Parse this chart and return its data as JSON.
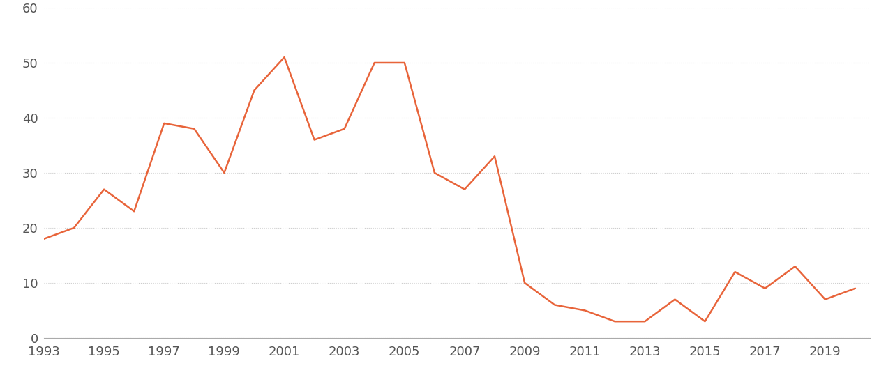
{
  "years": [
    1993,
    1994,
    1995,
    1996,
    1997,
    1998,
    1999,
    2000,
    2001,
    2002,
    2003,
    2004,
    2005,
    2006,
    2007,
    2008,
    2009,
    2010,
    2011,
    2012,
    2013,
    2014,
    2015,
    2016,
    2017,
    2018,
    2019,
    2020
  ],
  "values": [
    18,
    20,
    27,
    23,
    39,
    38,
    30,
    45,
    51,
    36,
    38,
    50,
    50,
    30,
    27,
    33,
    10,
    6,
    5,
    3,
    3,
    7,
    3,
    12,
    9,
    13,
    7,
    9
  ],
  "line_color": "#E8643A",
  "line_width": 1.8,
  "background_color": "#ffffff",
  "grid_color": "#cccccc",
  "yticks": [
    0,
    10,
    20,
    30,
    40,
    50,
    60
  ],
  "xtick_labels": [
    "1993",
    "1995",
    "1997",
    "1999",
    "2001",
    "2003",
    "2005",
    "2007",
    "2009",
    "2011",
    "2013",
    "2015",
    "2017",
    "2019"
  ],
  "xtick_positions": [
    1993,
    1995,
    1997,
    1999,
    2001,
    2003,
    2005,
    2007,
    2009,
    2011,
    2013,
    2015,
    2017,
    2019
  ],
  "ylim": [
    0,
    60
  ],
  "xlim": [
    1993,
    2020.5
  ],
  "tick_fontsize": 13,
  "tick_color": "#555555"
}
